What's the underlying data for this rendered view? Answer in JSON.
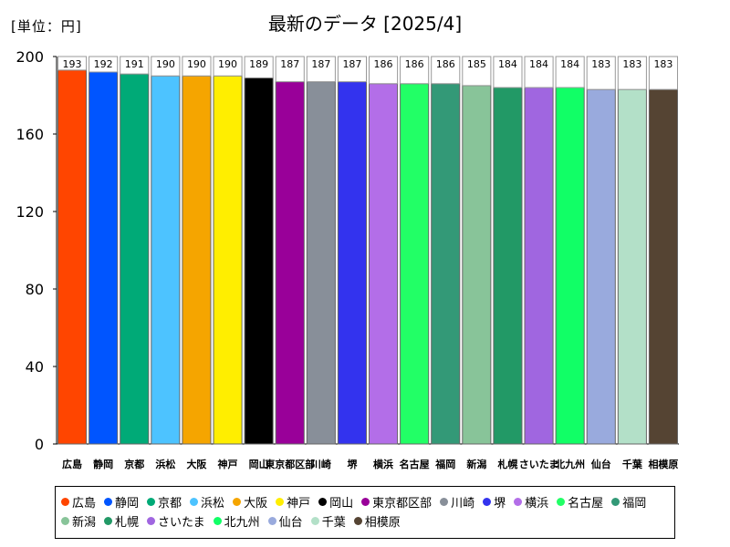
{
  "unit_label": "[単位：円]",
  "chart_data": {
    "type": "bar",
    "title": "最新のデータ [2025/4]",
    "xlabel": "",
    "ylabel": "",
    "ylim": [
      0,
      200
    ],
    "yticks": [
      0,
      40,
      80,
      120,
      160,
      200
    ],
    "grid": false,
    "legend": "bottom",
    "categories": [
      "広島",
      "静岡",
      "京都",
      "浜松",
      "大阪",
      "神戸",
      "岡山",
      "東京都区部",
      "川崎",
      "堺",
      "横浜",
      "名古屋",
      "福岡",
      "新潟",
      "札幌",
      "さいたま",
      "北九州",
      "仙台",
      "千葉",
      "相模原"
    ],
    "values": [
      193,
      192,
      191,
      190,
      190,
      190,
      189,
      187,
      187,
      187,
      186,
      186,
      186,
      185,
      184,
      184,
      184,
      183,
      183,
      183
    ],
    "colors": [
      "#ff4500",
      "#0055ff",
      "#00aa77",
      "#4dc3ff",
      "#f5a500",
      "#ffee00",
      "#000000",
      "#990099",
      "#888f99",
      "#3333ee",
      "#b36ee8",
      "#22ff66",
      "#339977",
      "#88c499",
      "#229966",
      "#a066e0",
      "#11ff66",
      "#99aadd",
      "#b3e0c8",
      "#554433"
    ]
  }
}
